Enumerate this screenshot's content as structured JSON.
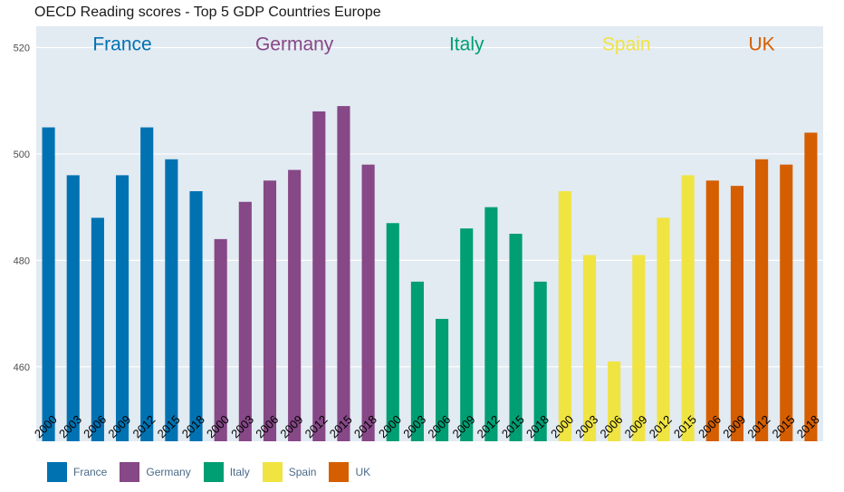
{
  "chart_data": {
    "type": "bar",
    "title": "OECD Reading scores - Top 5 GDP Countries Europe",
    "xlabel": "",
    "ylabel": "",
    "ylim": [
      446,
      524
    ],
    "yticks": [
      460,
      480,
      500,
      520
    ],
    "grid": true,
    "legend_position": "bottom-left",
    "groups": [
      {
        "name": "France",
        "color": "#0072b2",
        "categories": [
          "2000",
          "2003",
          "2006",
          "2009",
          "2012",
          "2015",
          "2018"
        ],
        "values": [
          505,
          496,
          488,
          496,
          505,
          499,
          493
        ]
      },
      {
        "name": "Germany",
        "color": "#864886",
        "categories": [
          "2000",
          "2003",
          "2006",
          "2009",
          "2012",
          "2015",
          "2018"
        ],
        "values": [
          484,
          491,
          495,
          497,
          508,
          509,
          498
        ]
      },
      {
        "name": "Italy",
        "color": "#009e73",
        "categories": [
          "2000",
          "2003",
          "2006",
          "2009",
          "2012",
          "2015",
          "2018"
        ],
        "values": [
          487,
          476,
          469,
          486,
          490,
          485,
          476
        ]
      },
      {
        "name": "Spain",
        "color": "#f0e442",
        "categories": [
          "2000",
          "2003",
          "2006",
          "2009",
          "2012",
          "2015"
        ],
        "values": [
          493,
          481,
          461,
          481,
          488,
          496
        ]
      },
      {
        "name": "UK",
        "color": "#d55e00",
        "categories": [
          "2006",
          "2009",
          "2012",
          "2015",
          "2018"
        ],
        "values": [
          495,
          494,
          499,
          498,
          504
        ]
      }
    ]
  }
}
